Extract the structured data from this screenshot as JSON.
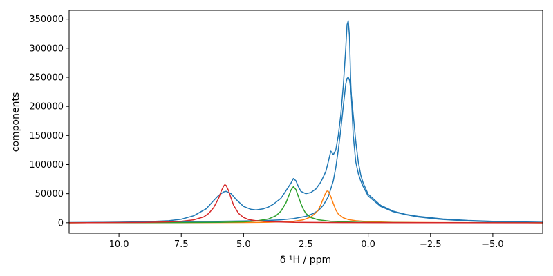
{
  "chart_data": {
    "type": "line",
    "xlabel": "δ ¹H / ppm",
    "ylabel": "components",
    "xlim": [
      12.0,
      -7.0
    ],
    "ylim": [
      -18000,
      365000
    ],
    "x_reversed": true,
    "grid": false,
    "xticks": [
      10.0,
      7.5,
      5.0,
      2.5,
      0.0,
      -2.5,
      -5.0
    ],
    "xtick_labels": [
      "10.0",
      "7.5",
      "5.0",
      "2.5",
      "0.0",
      "−2.5",
      "−5.0"
    ],
    "yticks": [
      0,
      50000,
      100000,
      150000,
      200000,
      250000,
      300000,
      350000
    ],
    "ytick_labels": [
      "0",
      "50000",
      "100000",
      "150000",
      "200000",
      "250000",
      "300000",
      "350000"
    ],
    "series": [
      {
        "color": "#1f77b4",
        "x": [
          12.0,
          11.0,
          10.0,
          9.0,
          8.0,
          7.5,
          7.0,
          6.5,
          6.2,
          6.0,
          5.8,
          5.7,
          5.5,
          5.3,
          5.0,
          4.7,
          4.5,
          4.2,
          4.0,
          3.8,
          3.5,
          3.3,
          3.1,
          3.0,
          2.9,
          2.8,
          2.7,
          2.5,
          2.3,
          2.1,
          1.9,
          1.7,
          1.6,
          1.5,
          1.4,
          1.3,
          1.2,
          1.1,
          1.0,
          0.9,
          0.85,
          0.8,
          0.75,
          0.7,
          0.6,
          0.5,
          0.4,
          0.3,
          0.2,
          0.0,
          -0.5,
          -1.0,
          -1.5,
          -2.0,
          -2.5,
          -3.0,
          -4.0,
          -5.0,
          -6.0,
          -7.0
        ],
        "y": [
          200,
          500,
          1000,
          1500,
          3500,
          6000,
          12000,
          24000,
          38000,
          47000,
          53000,
          54000,
          50000,
          40000,
          28000,
          23000,
          22000,
          24000,
          27000,
          32000,
          42000,
          55000,
          68000,
          76000,
          72000,
          62000,
          54000,
          50000,
          52000,
          58000,
          70000,
          88000,
          105000,
          123000,
          117000,
          125000,
          150000,
          185000,
          235000,
          300000,
          340000,
          347000,
          320000,
          240000,
          150000,
          105000,
          85000,
          72000,
          62000,
          46000,
          28000,
          19000,
          14000,
          10000,
          7500,
          5500,
          3000,
          1500,
          800,
          300
        ]
      },
      {
        "color": "#1f77b4",
        "x": [
          12.0,
          11.0,
          10.0,
          9.0,
          8.0,
          7.0,
          6.0,
          5.0,
          4.5,
          4.0,
          3.5,
          3.0,
          2.5,
          2.2,
          2.0,
          1.8,
          1.6,
          1.4,
          1.3,
          1.2,
          1.1,
          1.0,
          0.9,
          0.85,
          0.8,
          0.75,
          0.7,
          0.6,
          0.5,
          0.4,
          0.3,
          0.2,
          0.0,
          -0.5,
          -1.0,
          -1.5,
          -2.0,
          -3.0,
          -4.0,
          -5.0,
          -6.0,
          -7.0
        ],
        "y": [
          300,
          500,
          700,
          1000,
          1500,
          2000,
          2500,
          3000,
          3500,
          4000,
          5000,
          7000,
          11000,
          16000,
          21000,
          30000,
          45000,
          72000,
          95000,
          125000,
          160000,
          200000,
          238000,
          248000,
          250000,
          245000,
          230000,
          185000,
          140000,
          105000,
          82000,
          68000,
          49000,
          30000,
          20000,
          14500,
          11000,
          6500,
          4000,
          2500,
          1500,
          800
        ]
      },
      {
        "color": "#ff7f0e",
        "x": [
          12.0,
          8.0,
          5.0,
          4.0,
          3.0,
          2.6,
          2.3,
          2.1,
          2.0,
          1.9,
          1.8,
          1.7,
          1.65,
          1.6,
          1.5,
          1.4,
          1.3,
          1.2,
          1.0,
          0.8,
          0.5,
          0.0,
          -1.0,
          -3.0,
          -7.0
        ],
        "y": [
          0,
          100,
          400,
          800,
          2500,
          5000,
          10000,
          17000,
          22000,
          31000,
          42000,
          52000,
          54500,
          54000,
          45000,
          33000,
          22000,
          15000,
          8500,
          5500,
          3500,
          1800,
          700,
          200,
          0
        ]
      },
      {
        "color": "#2ca02c",
        "x": [
          12.0,
          8.0,
          6.0,
          5.0,
          4.5,
          4.0,
          3.7,
          3.5,
          3.3,
          3.2,
          3.1,
          3.0,
          2.9,
          2.8,
          2.7,
          2.6,
          2.5,
          2.3,
          2.0,
          1.5,
          1.0,
          0.0,
          -2.0,
          -7.0
        ],
        "y": [
          0,
          200,
          600,
          1500,
          3000,
          6500,
          12000,
          20000,
          34000,
          45000,
          56000,
          62000,
          57000,
          45000,
          33000,
          23000,
          16000,
          9000,
          5000,
          2500,
          1400,
          500,
          100,
          0
        ]
      },
      {
        "color": "#d62728",
        "x": [
          12.0,
          9.0,
          8.0,
          7.5,
          7.0,
          6.6,
          6.4,
          6.2,
          6.0,
          5.9,
          5.8,
          5.75,
          5.7,
          5.6,
          5.5,
          5.4,
          5.2,
          5.0,
          4.8,
          4.5,
          4.0,
          3.0,
          1.0,
          -2.0,
          -7.0
        ],
        "y": [
          0,
          500,
          1500,
          2500,
          5000,
          10000,
          16000,
          26000,
          42000,
          54000,
          63000,
          65500,
          64000,
          55000,
          42000,
          30000,
          16000,
          9000,
          5500,
          3500,
          1800,
          700,
          200,
          50,
          0
        ]
      }
    ]
  }
}
